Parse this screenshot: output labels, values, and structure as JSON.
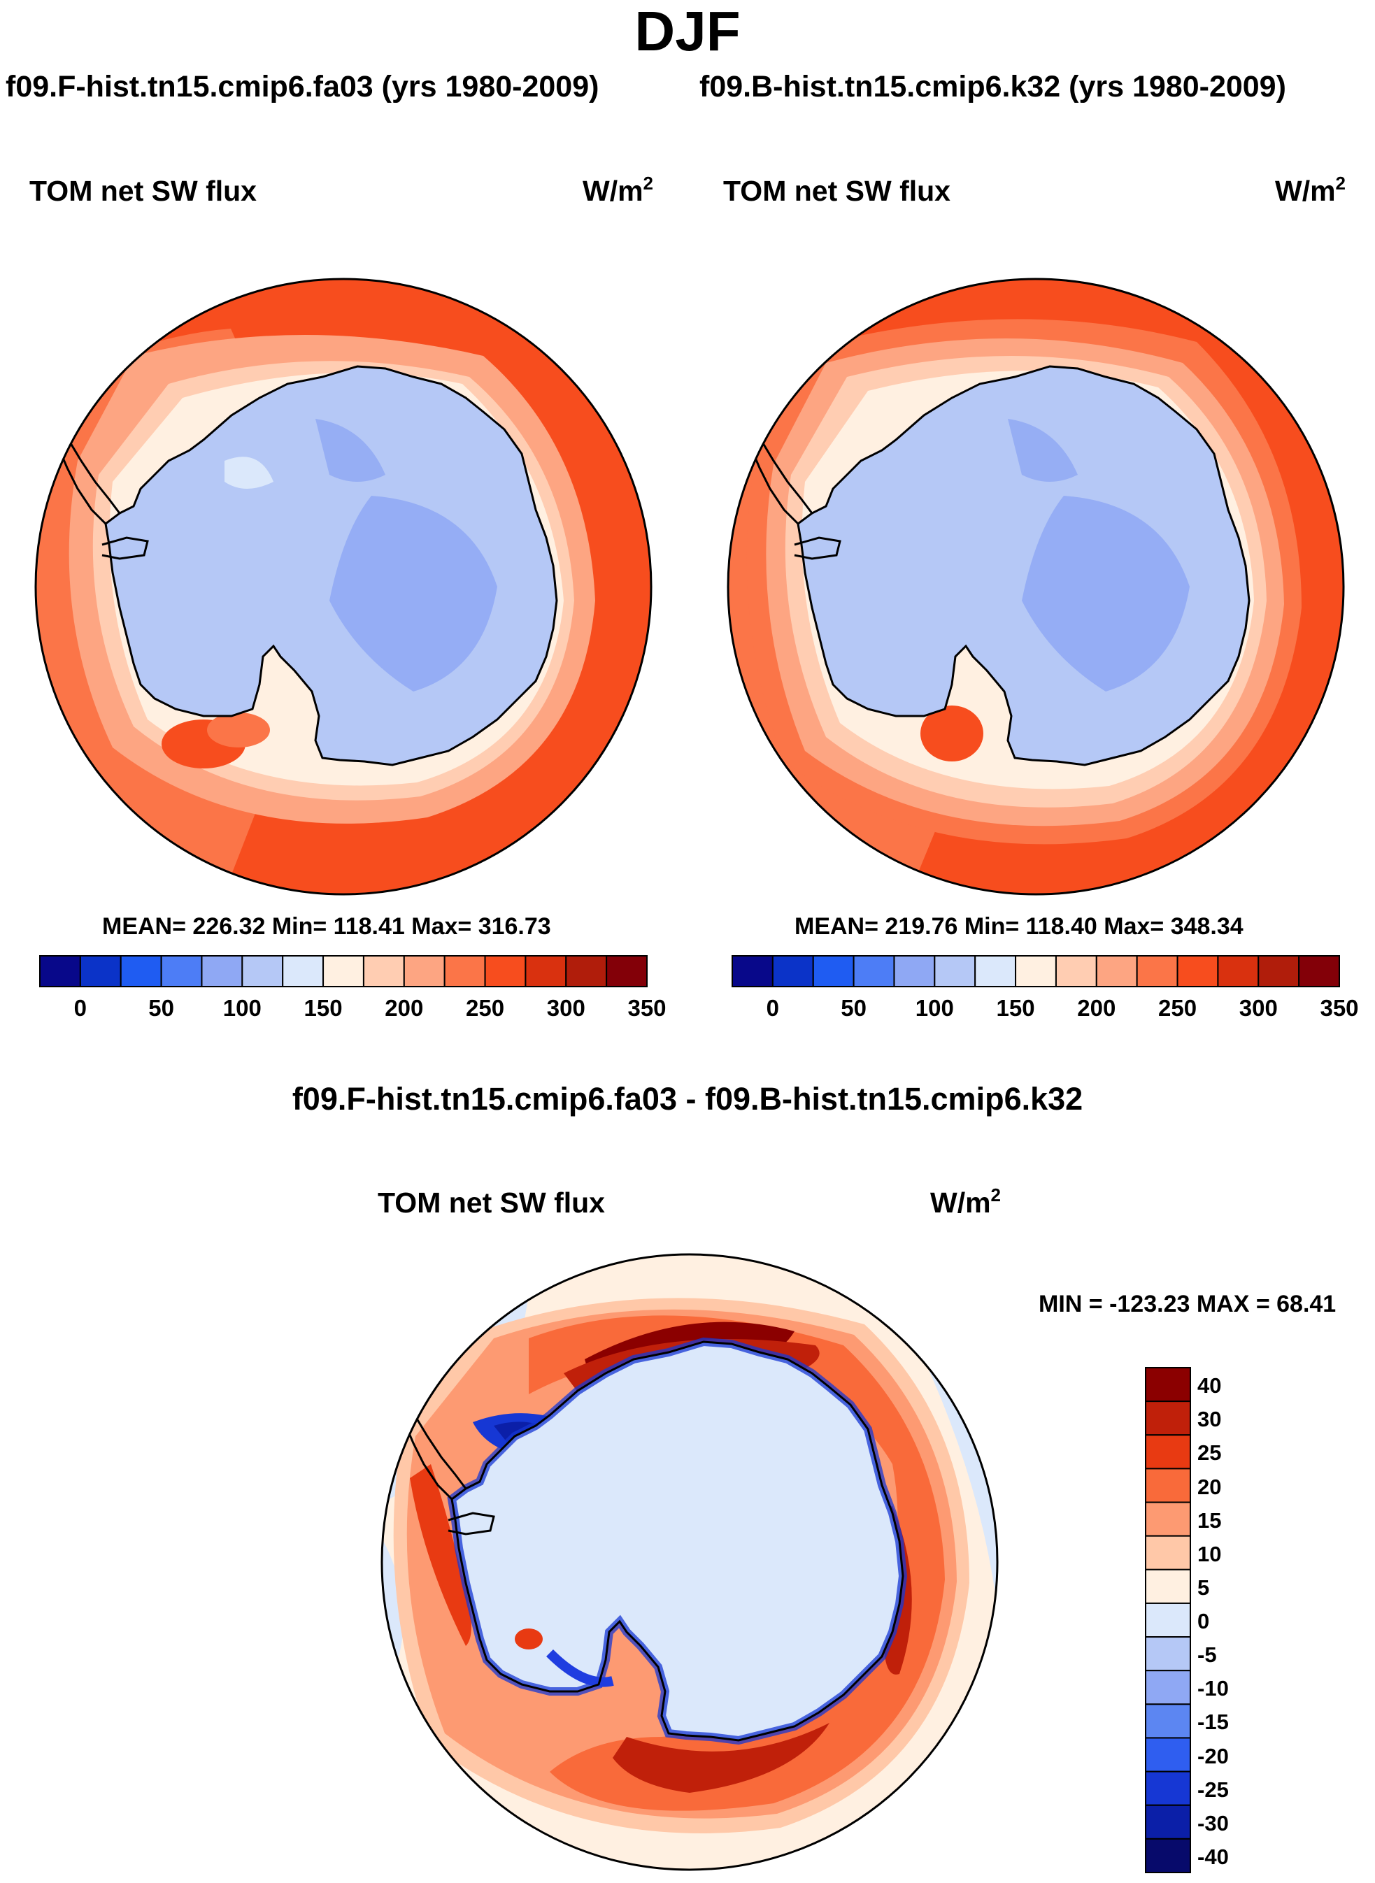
{
  "figure": {
    "title": "DJF",
    "subtitle_left": "f09.F-hist.tn15.cmip6.fa03 (yrs 1980-2009)",
    "subtitle_right": "f09.B-hist.tn15.cmip6.k32 (yrs 1980-2009)",
    "difference_title": "f09.F-hist.tn15.cmip6.fa03 - f09.B-hist.tn15.cmip6.k32"
  },
  "panels": [
    {
      "name": "left",
      "variable": "TOM net SW flux",
      "units_base": "W/m",
      "units_exp": "2",
      "stats": "MEAN= 226.32  Min= 118.41  Max= 316.73"
    },
    {
      "name": "right",
      "variable": "TOM net SW flux",
      "units_base": "W/m",
      "units_exp": "2",
      "stats": "MEAN= 219.76  Min= 118.40  Max= 348.34"
    },
    {
      "name": "diff",
      "variable": "TOM net SW flux",
      "units_base": "W/m",
      "units_exp": "2",
      "stats": "MIN = -123.23 MAX =  68.41"
    }
  ],
  "colorbar_abs": {
    "labels": [
      "0",
      "50",
      "100",
      "150",
      "200",
      "250",
      "300",
      "350"
    ],
    "colors": [
      "#08088a",
      "#0b33c8",
      "#1f5cf2",
      "#4d7df6",
      "#8fa8f4",
      "#b5c8f6",
      "#dbe8fb",
      "#fff0e1",
      "#ffcdb2",
      "#fda582",
      "#fb7548",
      "#f74d1e",
      "#d9310f",
      "#b01d0b",
      "#830008"
    ]
  },
  "colorbar_diff": {
    "labels": [
      "40",
      "30",
      "25",
      "20",
      "15",
      "10",
      "5",
      "0",
      "-5",
      "-10",
      "-15",
      "-20",
      "-25",
      "-30",
      "-40"
    ],
    "colors": [
      "#8b0000",
      "#c0200a",
      "#e83a12",
      "#f96a3a",
      "#fd9a72",
      "#ffc8a8",
      "#fff0e1",
      "#dbe8fb",
      "#b5c8f6",
      "#8fa8f4",
      "#5c86f2",
      "#2f5ef0",
      "#1637d4",
      "#0b1fa8",
      "#070a6b"
    ]
  },
  "chart_data": [
    {
      "type": "heatmap",
      "title": "TOM net SW flux",
      "case": "f09.F-hist.tn15.cmip6.fa03 (yrs 1980-2009)",
      "season": "DJF",
      "units": "W/m2",
      "projection": "south polar stereographic",
      "levels": [
        0,
        25,
        50,
        75,
        100,
        125,
        150,
        175,
        200,
        225,
        250,
        275,
        300,
        325,
        350
      ],
      "mean": 226.32,
      "min": 118.41,
      "max": 316.73
    },
    {
      "type": "heatmap",
      "title": "TOM net SW flux",
      "case": "f09.B-hist.tn15.cmip6.k32 (yrs 1980-2009)",
      "season": "DJF",
      "units": "W/m2",
      "projection": "south polar stereographic",
      "levels": [
        0,
        25,
        50,
        75,
        100,
        125,
        150,
        175,
        200,
        225,
        250,
        275,
        300,
        325,
        350
      ],
      "mean": 219.76,
      "min": 118.4,
      "max": 348.34
    },
    {
      "type": "heatmap",
      "title": "TOM net SW flux",
      "case": "f09.F-hist.tn15.cmip6.fa03 - f09.B-hist.tn15.cmip6.k32",
      "season": "DJF",
      "units": "W/m2",
      "projection": "south polar stereographic",
      "levels": [
        -40,
        -30,
        -25,
        -20,
        -15,
        -10,
        -5,
        0,
        5,
        10,
        15,
        20,
        25,
        30,
        40
      ],
      "min": -123.23,
      "max": 68.41
    }
  ]
}
